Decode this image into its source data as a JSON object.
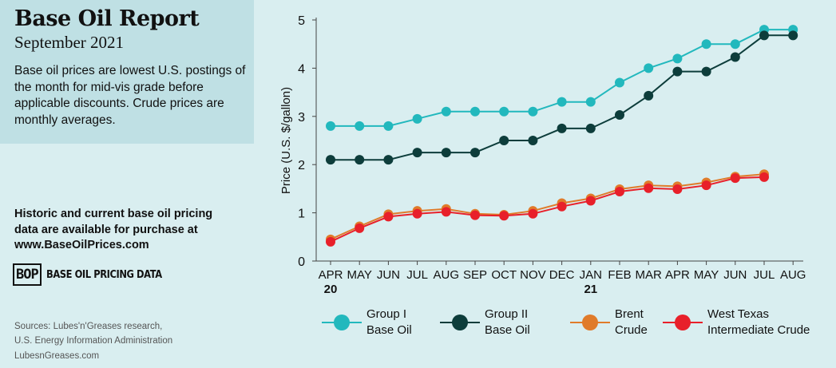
{
  "header": {
    "title": "Base Oil Report",
    "subtitle": "September 2021",
    "description": "Base oil prices are lowest U.S. postings of the month for mid-vis grade before applicable discounts. Crude prices are monthly averages."
  },
  "purchase": {
    "line1": "Historic and current base oil pricing",
    "line2": "data are available for purchase at",
    "line3": "www.BaseOilPrices.com"
  },
  "logo": {
    "mark": "BOP",
    "text": "BASE OIL PRICING DATA"
  },
  "sources": {
    "line1": "Sources: Lubes'n'Greases research,",
    "line2": "U.S. Energy Information Administration",
    "site": "LubesnGreases.com"
  },
  "chart_data": {
    "type": "line",
    "title": "",
    "xlabel": "",
    "ylabel": "Price (U.S. $/gallon)",
    "ylim": [
      0,
      5
    ],
    "yticks": [
      0,
      1,
      2,
      3,
      4,
      5
    ],
    "grid": false,
    "legend": "bottom",
    "categories": [
      "APR",
      "MAY",
      "JUN",
      "JUL",
      "AUG",
      "SEP",
      "OCT",
      "NOV",
      "DEC",
      "JAN",
      "FEB",
      "MAR",
      "APR",
      "MAY",
      "JUN",
      "JUL",
      "AUG"
    ],
    "year_labels": [
      {
        "index": 0,
        "label": "20"
      },
      {
        "index": 9,
        "label": "21"
      }
    ],
    "series": [
      {
        "name": "Group I Base Oil",
        "legend_lines": [
          "Group I",
          "Base Oil"
        ],
        "color": "#22b8bd",
        "values": [
          2.8,
          2.8,
          2.8,
          2.95,
          3.1,
          3.1,
          3.1,
          3.1,
          3.3,
          3.3,
          3.7,
          4.0,
          4.2,
          4.5,
          4.5,
          4.8,
          4.8
        ]
      },
      {
        "name": "Group II Base Oil",
        "legend_lines": [
          "Group II",
          "Base Oil"
        ],
        "color": "#0d3d3b",
        "values": [
          2.1,
          2.1,
          2.1,
          2.25,
          2.25,
          2.25,
          2.5,
          2.5,
          2.75,
          2.75,
          3.03,
          3.43,
          3.93,
          3.93,
          4.23,
          4.68,
          4.68
        ]
      },
      {
        "name": "Brent Crude",
        "legend_lines": [
          "Brent",
          "Crude"
        ],
        "color": "#e07b2a",
        "values": [
          0.45,
          0.72,
          0.97,
          1.04,
          1.08,
          0.98,
          0.96,
          1.04,
          1.2,
          1.3,
          1.49,
          1.57,
          1.55,
          1.63,
          1.75,
          1.8,
          null
        ]
      },
      {
        "name": "West Texas Intermediate Crude",
        "legend_lines": [
          "West Texas",
          "Intermediate Crude"
        ],
        "color": "#e8202a",
        "values": [
          0.4,
          0.68,
          0.92,
          0.98,
          1.02,
          0.95,
          0.94,
          0.98,
          1.13,
          1.25,
          1.44,
          1.51,
          1.49,
          1.57,
          1.72,
          1.74,
          null
        ]
      }
    ]
  }
}
